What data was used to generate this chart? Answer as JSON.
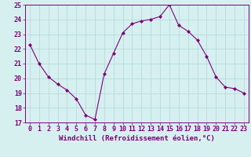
{
  "x": [
    0,
    1,
    2,
    3,
    4,
    5,
    6,
    7,
    8,
    9,
    10,
    11,
    12,
    13,
    14,
    15,
    16,
    17,
    18,
    19,
    20,
    21,
    22,
    23
  ],
  "y": [
    22.3,
    21.0,
    20.1,
    19.6,
    19.2,
    18.6,
    17.5,
    17.2,
    20.3,
    21.7,
    23.1,
    23.7,
    23.9,
    24.0,
    24.2,
    25.0,
    23.6,
    23.2,
    22.6,
    21.5,
    20.1,
    19.4,
    19.3,
    19.0
  ],
  "line_color": "#800080",
  "marker": "D",
  "marker_size": 2.0,
  "bg_color": "#d6f0f0",
  "grid_color": "#b0d8d8",
  "ylim": [
    17,
    25
  ],
  "yticks": [
    17,
    18,
    19,
    20,
    21,
    22,
    23,
    24,
    25
  ],
  "xlabel": "Windchill (Refroidissement éolien,°C)",
  "xlabel_fontsize": 6.5,
  "tick_fontsize": 6.0,
  "linewidth": 0.8
}
